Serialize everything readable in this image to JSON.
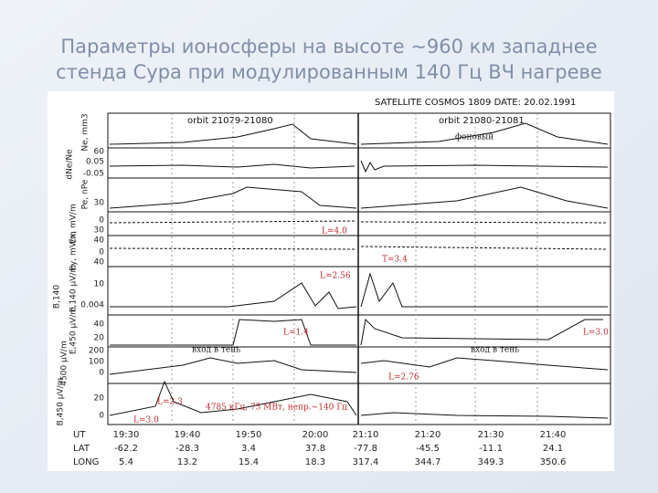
{
  "title_lines": [
    "Параметры ионосферы на высоте ~960 км западнее",
    "стенда Сура при модулированным 140 Гц ВЧ нагреве"
  ],
  "figure": {
    "header": "SATELLITE  COSMOS 1809  DATE: 20.02.1991",
    "orbits": [
      "orbit 21079-21080",
      "orbit 21080-21081"
    ],
    "axis_labels": [
      "Ne, mm3",
      "dNe/Ne",
      "Pe, nPe",
      "Ex, mV/m",
      "Ey, mV/m",
      "E,140 μV/m",
      "B,140",
      "E,450 μV/m",
      "4500 μV/m",
      "B,450 μV/m"
    ],
    "tick_labels": [
      "60",
      "0.05",
      "-0.05",
      "30",
      "0",
      "30",
      "40",
      "0",
      "40",
      "10",
      "0.004",
      "40",
      "20",
      "200",
      "100",
      "0",
      "20",
      "0"
    ],
    "red_annotations": [
      "L=4.0",
      "T=3.4",
      "L=2.56",
      "L=1.4",
      "L=3.0",
      "L=2.76",
      "L=2.3",
      "L=3.0",
      "4785 кГц, 75 МВт, непр.~140 Гц"
    ],
    "black_annotations": [
      "фоновый",
      "вход в тень",
      "вход в тень"
    ],
    "table": {
      "row_labels": [
        "UT",
        "LAT",
        "LONG"
      ],
      "rows": [
        [
          "19:30",
          "19:40",
          "19:50",
          "20:00",
          "21:10",
          "21:20",
          "21:30",
          "21:40"
        ],
        [
          "-62.2",
          "-28.3",
          "3.4",
          "37.8",
          "-77.8",
          "-45.5",
          "-11.1",
          "24.1"
        ],
        [
          "5.4",
          "13.2",
          "15.4",
          "18.3",
          "317.4",
          "344.7",
          "349.3",
          "350.6"
        ]
      ]
    }
  }
}
